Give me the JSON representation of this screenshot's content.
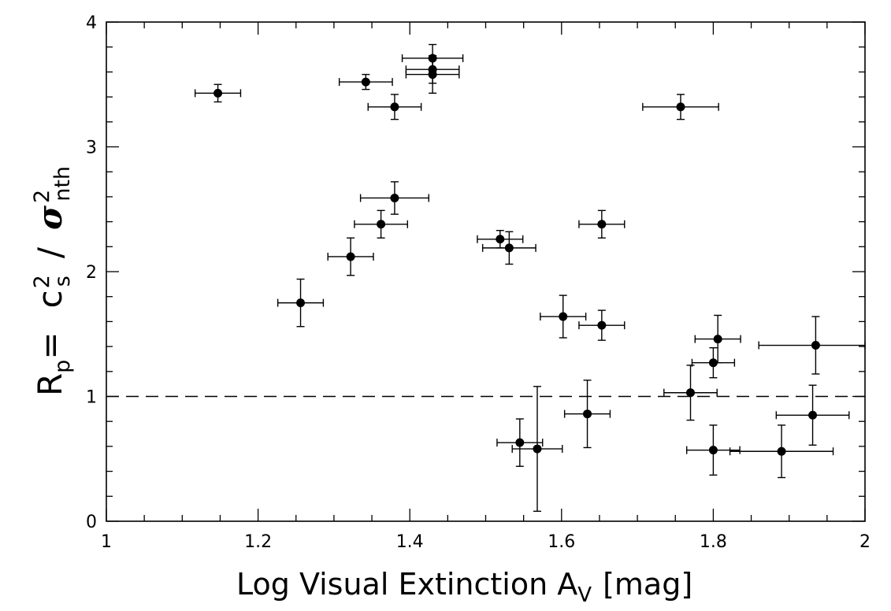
{
  "chart_data": {
    "type": "scatter",
    "xlabel": "Log Visual Extinction A",
    "xlabel_sub": "V",
    "xlabel_units": "[mag]",
    "ylabel": {
      "r": "R",
      "r_sub": "p",
      "eq": "=",
      "c": "c",
      "c_sup": "2",
      "c_sub": "s",
      "slash": "/",
      "sigma": "σ",
      "sigma_sup": "2",
      "sigma_sub": "nth"
    },
    "xlim": [
      1,
      2
    ],
    "ylim": [
      0,
      4
    ],
    "x_ticks": [
      "1",
      "1.2",
      "1.4",
      "1.6",
      "1.8",
      "2"
    ],
    "y_ticks": [
      "0",
      "1",
      "2",
      "3",
      "4"
    ],
    "reference_line_y": 1,
    "reference_line_style": "dashed",
    "grid": false,
    "points": [
      {
        "x": 1.147,
        "y": 3.43,
        "xerr": 0.03,
        "yerr": 0.07
      },
      {
        "x": 1.342,
        "y": 3.52,
        "xerr": 0.035,
        "yerr": 0.06
      },
      {
        "x": 1.38,
        "y": 3.32,
        "xerr": 0.035,
        "yerr": 0.1
      },
      {
        "x": 1.43,
        "y": 3.71,
        "xerr": 0.04,
        "yerr": 0.11
      },
      {
        "x": 1.43,
        "y": 3.62,
        "xerr": 0.035,
        "yerr": 0.11
      },
      {
        "x": 1.43,
        "y": 3.58,
        "xerr": 0.035,
        "yerr": 0.15
      },
      {
        "x": 1.757,
        "y": 3.32,
        "xerr": 0.05,
        "yerr": 0.1
      },
      {
        "x": 1.38,
        "y": 2.59,
        "xerr": 0.045,
        "yerr": 0.13
      },
      {
        "x": 1.362,
        "y": 2.38,
        "xerr": 0.035,
        "yerr": 0.11
      },
      {
        "x": 1.322,
        "y": 2.12,
        "xerr": 0.03,
        "yerr": 0.15
      },
      {
        "x": 1.256,
        "y": 1.75,
        "xerr": 0.03,
        "yerr": 0.19
      },
      {
        "x": 1.519,
        "y": 2.26,
        "xerr": 0.03,
        "yerr": 0.07
      },
      {
        "x": 1.531,
        "y": 2.19,
        "xerr": 0.035,
        "yerr": 0.13
      },
      {
        "x": 1.653,
        "y": 2.38,
        "xerr": 0.03,
        "yerr": 0.11
      },
      {
        "x": 1.602,
        "y": 1.64,
        "xerr": 0.03,
        "yerr": 0.17
      },
      {
        "x": 1.653,
        "y": 1.57,
        "xerr": 0.03,
        "yerr": 0.12
      },
      {
        "x": 1.806,
        "y": 1.46,
        "xerr": 0.03,
        "yerr": 0.19
      },
      {
        "x": 1.8,
        "y": 1.27,
        "xerr": 0.028,
        "yerr": 0.12
      },
      {
        "x": 1.935,
        "y": 1.41,
        "xerr": 0.075,
        "yerr": 0.23
      },
      {
        "x": 1.77,
        "y": 1.03,
        "xerr": 0.035,
        "yerr": 0.22
      },
      {
        "x": 1.634,
        "y": 0.86,
        "xerr": 0.03,
        "yerr": 0.27
      },
      {
        "x": 1.931,
        "y": 0.85,
        "xerr": 0.048,
        "yerr": 0.24
      },
      {
        "x": 1.545,
        "y": 0.63,
        "xerr": 0.03,
        "yerr": 0.19
      },
      {
        "x": 1.568,
        "y": 0.58,
        "xerr": 0.033,
        "yerr": 0.5
      },
      {
        "x": 1.8,
        "y": 0.57,
        "xerr": 0.035,
        "yerr": 0.2
      },
      {
        "x": 1.89,
        "y": 0.56,
        "xerr": 0.068,
        "yerr": 0.21
      }
    ]
  }
}
